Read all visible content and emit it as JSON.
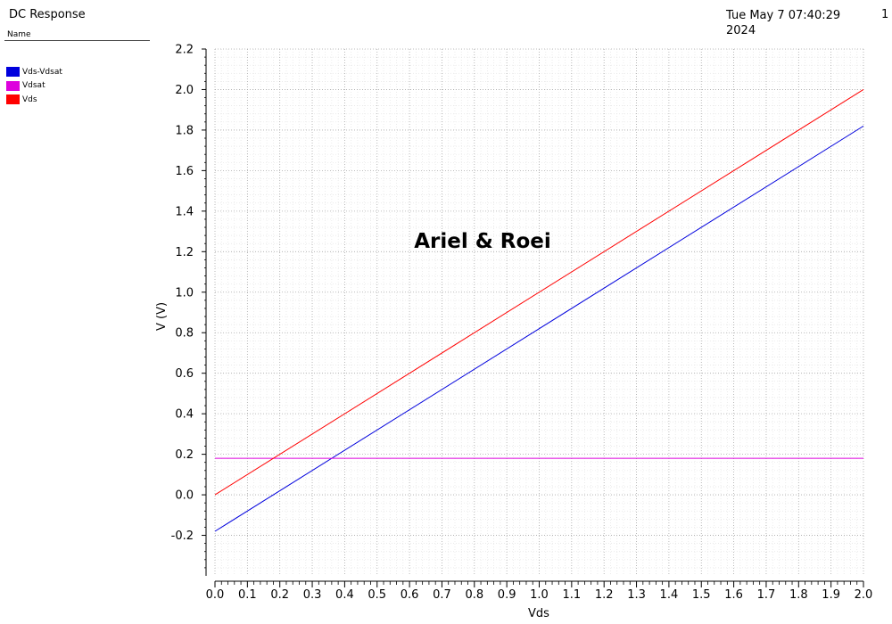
{
  "window": {
    "title": "DC Response",
    "date": "Tue May 7 07:40:29 2024",
    "page": "1"
  },
  "legend": {
    "header": "Name",
    "items": [
      {
        "label": "Vds-Vdsat",
        "color": "#0000dd"
      },
      {
        "label": "Vdsat",
        "color": "#dd00dd"
      },
      {
        "label": "Vds",
        "color": "#ff0000"
      }
    ]
  },
  "chart_data": {
    "type": "line",
    "xlabel": "Vds",
    "ylabel": "V (V)",
    "xlim": [
      0.0,
      2.0
    ],
    "ylim": [
      -0.4,
      2.2
    ],
    "xticks": [
      "0.0",
      "0.1",
      "0.2",
      "0.3",
      "0.4",
      "0.5",
      "0.6",
      "0.7",
      "0.8",
      "0.9",
      "1.0",
      "1.1",
      "1.2",
      "1.3",
      "1.4",
      "1.5",
      "1.6",
      "1.7",
      "1.8",
      "1.9",
      "2.0"
    ],
    "yticks": [
      "-0.2",
      "0.0",
      "0.2",
      "0.4",
      "0.6",
      "0.8",
      "1.0",
      "1.2",
      "1.4",
      "1.6",
      "1.8",
      "2.0",
      "2.2"
    ],
    "grid": true,
    "annotation": "Ariel & Roei",
    "series": [
      {
        "name": "Vds-Vdsat",
        "color": "#0000dd",
        "x": [
          0.0,
          2.0
        ],
        "y": [
          -0.18,
          1.82
        ]
      },
      {
        "name": "Vdsat",
        "color": "#dd00dd",
        "x": [
          0.0,
          2.0
        ],
        "y": [
          0.18,
          0.18
        ]
      },
      {
        "name": "Vds",
        "color": "#ff0000",
        "x": [
          0.0,
          2.0
        ],
        "y": [
          0.0,
          2.0
        ]
      }
    ]
  }
}
